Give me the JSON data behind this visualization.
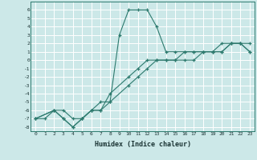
{
  "xlabel": "Humidex (Indice chaleur)",
  "background_color": "#cce8e8",
  "line_color": "#2d7a6e",
  "grid_color": "#ffffff",
  "xlim": [
    -0.5,
    23.5
  ],
  "ylim": [
    -8.5,
    7
  ],
  "xticks": [
    0,
    1,
    2,
    3,
    4,
    5,
    6,
    7,
    8,
    9,
    10,
    11,
    12,
    13,
    14,
    15,
    16,
    17,
    18,
    19,
    20,
    21,
    22,
    23
  ],
  "yticks": [
    -8,
    -7,
    -6,
    -5,
    -4,
    -3,
    -2,
    -1,
    0,
    1,
    2,
    3,
    4,
    5,
    6
  ],
  "series1_x": [
    0,
    1,
    2,
    3,
    4,
    5,
    6,
    7,
    8,
    9,
    10,
    11,
    12,
    13,
    14,
    15,
    16,
    17,
    18,
    19,
    20,
    21,
    22,
    23
  ],
  "series1_y": [
    -7,
    -7,
    -6,
    -6,
    -7,
    -7,
    -6,
    -5,
    -5,
    3,
    6,
    6,
    6,
    4,
    1,
    1,
    1,
    1,
    1,
    1,
    2,
    2,
    2,
    1
  ],
  "series2_x": [
    0,
    2,
    3,
    4,
    5,
    6,
    7,
    8,
    10,
    11,
    12,
    13,
    14,
    15,
    16,
    17,
    18,
    19,
    20,
    21,
    22,
    23
  ],
  "series2_y": [
    -7,
    -6,
    -7,
    -8,
    -7,
    -6,
    -6,
    -4,
    -2,
    -1,
    0,
    0,
    0,
    0,
    1,
    1,
    1,
    1,
    1,
    2,
    2,
    1
  ],
  "series3_x": [
    0,
    2,
    3,
    4,
    5,
    6,
    7,
    8,
    10,
    11,
    12,
    13,
    14,
    15,
    16,
    17,
    18,
    19,
    20,
    21,
    22,
    23
  ],
  "series3_y": [
    -7,
    -6,
    -7,
    -8,
    -7,
    -6,
    -6,
    -5,
    -3,
    -2,
    -1,
    0,
    0,
    0,
    0,
    0,
    1,
    1,
    1,
    2,
    2,
    2
  ]
}
